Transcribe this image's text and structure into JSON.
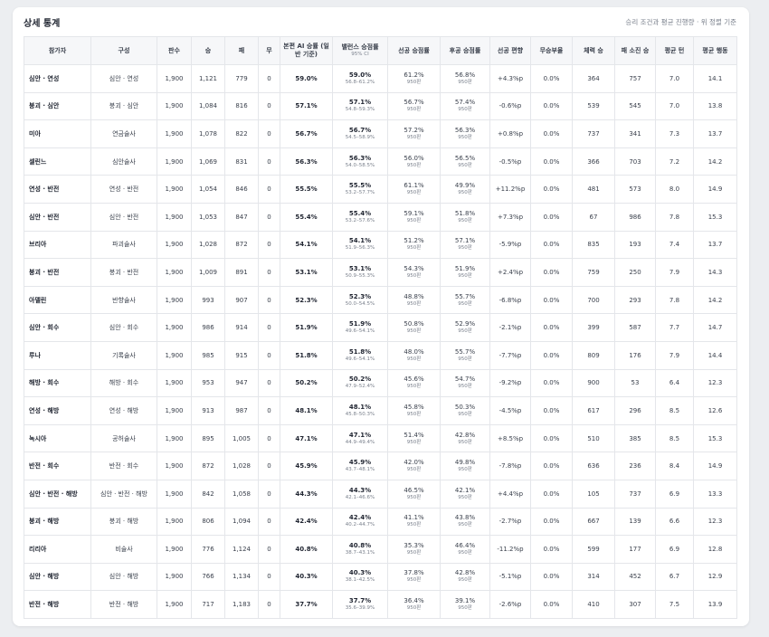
{
  "header": {
    "title": "상세 통계",
    "note": "승리 조건과 평균 진행량 · 위 정렬 기준"
  },
  "table": {
    "columns": [
      "참가자",
      "구성",
      "판수",
      "승",
      "패",
      "무",
      "본편 AI 승률 (일반 기준)",
      {
        "text": "밸런스 승점률",
        "sub": "95% CI"
      },
      "선공 승점률",
      "후공 승점률",
      "선공 편향",
      "무승부율",
      "체력 승",
      "패 소진 승",
      "평균 턴",
      "평균 행동"
    ],
    "rows": [
      [
        "심안 · 연성",
        "심안 · 연성",
        "1,900",
        "1,121",
        "779",
        "0",
        "59.0%",
        {
          "text": "59.0%",
          "sub": "56.8–61.2%"
        },
        {
          "text": "61.2%",
          "sub": "950판"
        },
        {
          "text": "56.8%",
          "sub": "950판"
        },
        "+4.3%p",
        "0.0%",
        "364",
        "757",
        "7.0",
        "14.1"
      ],
      [
        "붕괴 · 심안",
        "붕괴 · 심안",
        "1,900",
        "1,084",
        "816",
        "0",
        "57.1%",
        {
          "text": "57.1%",
          "sub": "54.8–59.3%"
        },
        {
          "text": "56.7%",
          "sub": "950판"
        },
        {
          "text": "57.4%",
          "sub": "950판"
        },
        "-0.6%p",
        "0.0%",
        "539",
        "545",
        "7.0",
        "13.8"
      ],
      [
        "미아",
        "연금술사",
        "1,900",
        "1,078",
        "822",
        "0",
        "56.7%",
        {
          "text": "56.7%",
          "sub": "54.5–58.9%"
        },
        {
          "text": "57.2%",
          "sub": "950판"
        },
        {
          "text": "56.3%",
          "sub": "950판"
        },
        "+0.8%p",
        "0.0%",
        "737",
        "341",
        "7.3",
        "13.7"
      ],
      [
        "셀린느",
        "심안술사",
        "1,900",
        "1,069",
        "831",
        "0",
        "56.3%",
        {
          "text": "56.3%",
          "sub": "54.0–58.5%"
        },
        {
          "text": "56.0%",
          "sub": "950판"
        },
        {
          "text": "56.5%",
          "sub": "950판"
        },
        "-0.5%p",
        "0.0%",
        "366",
        "703",
        "7.2",
        "14.2"
      ],
      [
        "연성 · 반전",
        "연성 · 반전",
        "1,900",
        "1,054",
        "846",
        "0",
        "55.5%",
        {
          "text": "55.5%",
          "sub": "53.2–57.7%"
        },
        {
          "text": "61.1%",
          "sub": "950판"
        },
        {
          "text": "49.9%",
          "sub": "950판"
        },
        "+11.2%p",
        "0.0%",
        "481",
        "573",
        "8.0",
        "14.9"
      ],
      [
        "심안 · 반전",
        "심안 · 반전",
        "1,900",
        "1,053",
        "847",
        "0",
        "55.4%",
        {
          "text": "55.4%",
          "sub": "53.2–57.6%"
        },
        {
          "text": "59.1%",
          "sub": "950판"
        },
        {
          "text": "51.8%",
          "sub": "950판"
        },
        "+7.3%p",
        "0.0%",
        "67",
        "986",
        "7.8",
        "15.3"
      ],
      [
        "브리아",
        "파괴술사",
        "1,900",
        "1,028",
        "872",
        "0",
        "54.1%",
        {
          "text": "54.1%",
          "sub": "51.9–56.3%"
        },
        {
          "text": "51.2%",
          "sub": "950판"
        },
        {
          "text": "57.1%",
          "sub": "950판"
        },
        "-5.9%p",
        "0.0%",
        "835",
        "193",
        "7.4",
        "13.7"
      ],
      [
        "붕괴 · 반전",
        "붕괴 · 반전",
        "1,900",
        "1,009",
        "891",
        "0",
        "53.1%",
        {
          "text": "53.1%",
          "sub": "50.9–55.3%"
        },
        {
          "text": "54.3%",
          "sub": "950판"
        },
        {
          "text": "51.9%",
          "sub": "950판"
        },
        "+2.4%p",
        "0.0%",
        "759",
        "250",
        "7.9",
        "14.3"
      ],
      [
        "아델린",
        "반향술사",
        "1,900",
        "993",
        "907",
        "0",
        "52.3%",
        {
          "text": "52.3%",
          "sub": "50.0–54.5%"
        },
        {
          "text": "48.8%",
          "sub": "950판"
        },
        {
          "text": "55.7%",
          "sub": "950판"
        },
        "-6.8%p",
        "0.0%",
        "700",
        "293",
        "7.8",
        "14.2"
      ],
      [
        "심안 · 회수",
        "심안 · 회수",
        "1,900",
        "986",
        "914",
        "0",
        "51.9%",
        {
          "text": "51.9%",
          "sub": "49.6–54.1%"
        },
        {
          "text": "50.8%",
          "sub": "950판"
        },
        {
          "text": "52.9%",
          "sub": "950판"
        },
        "-2.1%p",
        "0.0%",
        "399",
        "587",
        "7.7",
        "14.7"
      ],
      [
        "루나",
        "기록술사",
        "1,900",
        "985",
        "915",
        "0",
        "51.8%",
        {
          "text": "51.8%",
          "sub": "49.6–54.1%"
        },
        {
          "text": "48.0%",
          "sub": "950판"
        },
        {
          "text": "55.7%",
          "sub": "950판"
        },
        "-7.7%p",
        "0.0%",
        "809",
        "176",
        "7.9",
        "14.4"
      ],
      [
        "해방 · 회수",
        "해방 · 회수",
        "1,900",
        "953",
        "947",
        "0",
        "50.2%",
        {
          "text": "50.2%",
          "sub": "47.9–52.4%"
        },
        {
          "text": "45.6%",
          "sub": "950판"
        },
        {
          "text": "54.7%",
          "sub": "950판"
        },
        "-9.2%p",
        "0.0%",
        "900",
        "53",
        "6.4",
        "12.3"
      ],
      [
        "연성 · 해방",
        "연성 · 해방",
        "1,900",
        "913",
        "987",
        "0",
        "48.1%",
        {
          "text": "48.1%",
          "sub": "45.8–50.3%"
        },
        {
          "text": "45.8%",
          "sub": "950판"
        },
        {
          "text": "50.3%",
          "sub": "950판"
        },
        "-4.5%p",
        "0.0%",
        "617",
        "296",
        "8.5",
        "12.6"
      ],
      [
        "녹시아",
        "공허술사",
        "1,900",
        "895",
        "1,005",
        "0",
        "47.1%",
        {
          "text": "47.1%",
          "sub": "44.9–49.4%"
        },
        {
          "text": "51.4%",
          "sub": "950판"
        },
        {
          "text": "42.8%",
          "sub": "950판"
        },
        "+8.5%p",
        "0.0%",
        "510",
        "385",
        "8.5",
        "15.3"
      ],
      [
        "반전 · 회수",
        "반전 · 회수",
        "1,900",
        "872",
        "1,028",
        "0",
        "45.9%",
        {
          "text": "45.9%",
          "sub": "43.7–48.1%"
        },
        {
          "text": "42.0%",
          "sub": "950판"
        },
        {
          "text": "49.8%",
          "sub": "950판"
        },
        "-7.8%p",
        "0.0%",
        "636",
        "236",
        "8.4",
        "14.9"
      ],
      [
        "심안 · 반전 · 해방",
        "심안 · 반전 · 해방",
        "1,900",
        "842",
        "1,058",
        "0",
        "44.3%",
        {
          "text": "44.3%",
          "sub": "42.1–46.6%"
        },
        {
          "text": "46.5%",
          "sub": "950판"
        },
        {
          "text": "42.1%",
          "sub": "950판"
        },
        "+4.4%p",
        "0.0%",
        "105",
        "737",
        "6.9",
        "13.3"
      ],
      [
        "붕괴 · 해방",
        "붕괴 · 해방",
        "1,900",
        "806",
        "1,094",
        "0",
        "42.4%",
        {
          "text": "42.4%",
          "sub": "40.2–44.7%"
        },
        {
          "text": "41.1%",
          "sub": "950판"
        },
        {
          "text": "43.8%",
          "sub": "950판"
        },
        "-2.7%p",
        "0.0%",
        "667",
        "139",
        "6.6",
        "12.3"
      ],
      [
        "리리아",
        "비술사",
        "1,900",
        "776",
        "1,124",
        "0",
        "40.8%",
        {
          "text": "40.8%",
          "sub": "38.7–43.1%"
        },
        {
          "text": "35.3%",
          "sub": "950판"
        },
        {
          "text": "46.4%",
          "sub": "950판"
        },
        "-11.2%p",
        "0.0%",
        "599",
        "177",
        "6.9",
        "12.8"
      ],
      [
        "심안 · 해방",
        "심안 · 해방",
        "1,900",
        "766",
        "1,134",
        "0",
        "40.3%",
        {
          "text": "40.3%",
          "sub": "38.1–42.5%"
        },
        {
          "text": "37.8%",
          "sub": "950판"
        },
        {
          "text": "42.8%",
          "sub": "950판"
        },
        "-5.1%p",
        "0.0%",
        "314",
        "452",
        "6.7",
        "12.9"
      ],
      [
        "반전 · 해방",
        "반전 · 해방",
        "1,900",
        "717",
        "1,183",
        "0",
        "37.7%",
        {
          "text": "37.7%",
          "sub": "35.6–39.9%"
        },
        {
          "text": "36.4%",
          "sub": "950판"
        },
        {
          "text": "39.1%",
          "sub": "950판"
        },
        "-2.6%p",
        "0.0%",
        "410",
        "307",
        "7.5",
        "13.9"
      ]
    ]
  }
}
